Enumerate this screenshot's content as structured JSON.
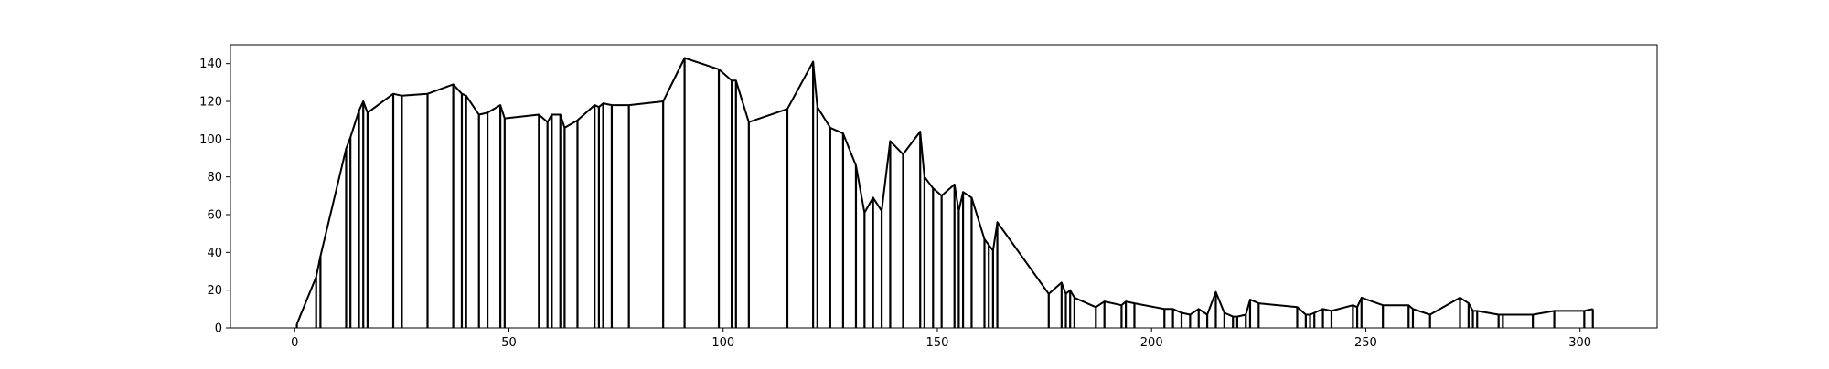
{
  "chart_data": {
    "type": "line",
    "title": "",
    "xlabel": "",
    "ylabel": "",
    "xlim": [
      -15,
      318
    ],
    "ylim": [
      0,
      150
    ],
    "x_ticks": [
      0,
      50,
      100,
      150,
      200,
      250,
      300
    ],
    "y_ticks": [
      0,
      20,
      40,
      60,
      80,
      100,
      120,
      140
    ],
    "grid": false,
    "legend": "none",
    "line_color": "#000000",
    "drop_lines": true,
    "series": [
      {
        "x": [
          0.5,
          5,
          6,
          12,
          13,
          15,
          16,
          17,
          23,
          25,
          31,
          37,
          39,
          40,
          43,
          45,
          48,
          49,
          57,
          59,
          60,
          62,
          63,
          66,
          70,
          71,
          72,
          74,
          78,
          86,
          91,
          99,
          102,
          103,
          106,
          115,
          121,
          122,
          125,
          128,
          131,
          133,
          135,
          137,
          139,
          142,
          146,
          147,
          149,
          151,
          154,
          155,
          156,
          158,
          161,
          162,
          163,
          164,
          176,
          179,
          180,
          181,
          182,
          187,
          189,
          193,
          194,
          196,
          203,
          205,
          207,
          209,
          211,
          213,
          215,
          217,
          219,
          220,
          222,
          223,
          225,
          234,
          236,
          237,
          238,
          240,
          242,
          247,
          248,
          249,
          254,
          260,
          261,
          265,
          272,
          274,
          275,
          276,
          281,
          282,
          289,
          294,
          301,
          303
        ],
        "y": [
          2,
          27,
          38,
          95,
          101,
          115,
          120,
          114,
          124,
          123,
          124,
          129,
          124,
          123,
          113,
          114,
          118,
          111,
          113,
          109,
          113,
          113,
          106,
          110,
          118,
          117,
          119,
          118,
          118,
          120,
          143,
          137,
          131,
          131,
          109,
          116,
          141,
          117,
          106,
          103,
          86,
          61,
          69,
          62,
          99,
          92,
          104,
          80,
          74,
          70,
          76,
          62,
          72,
          69,
          47,
          44,
          41,
          56,
          18,
          24,
          18,
          20,
          16,
          11,
          14,
          12,
          14,
          13,
          10,
          10,
          8,
          7,
          10,
          7,
          19,
          8,
          6,
          6,
          7,
          15,
          13,
          11,
          7,
          7,
          8,
          10,
          9,
          12,
          11,
          16,
          12,
          12,
          10,
          7,
          16,
          13,
          9,
          9,
          7,
          7,
          7,
          9,
          9,
          10
        ]
      }
    ]
  }
}
